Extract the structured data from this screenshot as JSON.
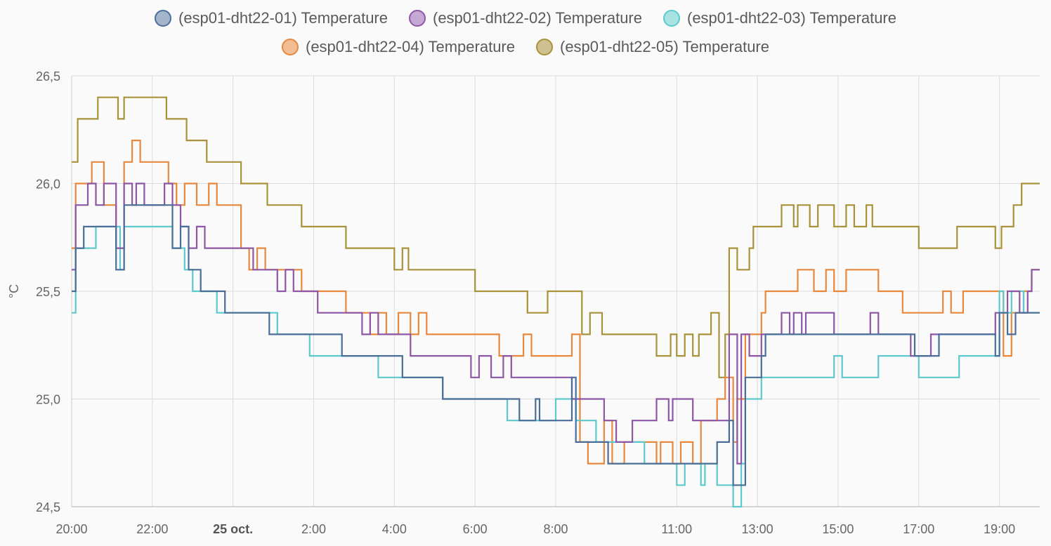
{
  "chart_data": {
    "type": "line",
    "step": true,
    "ylabel": "°C",
    "ylim": [
      24.5,
      26.5
    ],
    "y_ticks": [
      {
        "value": 24.5,
        "label": "24,5"
      },
      {
        "value": 25.0,
        "label": "25,0"
      },
      {
        "value": 25.5,
        "label": "25,5"
      },
      {
        "value": 26.0,
        "label": "26,0"
      },
      {
        "value": 26.5,
        "label": "26,5"
      }
    ],
    "xlim_hours": [
      20,
      44
    ],
    "x_ticks": [
      {
        "hour": 20,
        "label": "20:00",
        "bold": false
      },
      {
        "hour": 22,
        "label": "22:00",
        "bold": false
      },
      {
        "hour": 24,
        "label": "25 oct.",
        "bold": true
      },
      {
        "hour": 26,
        "label": "2:00",
        "bold": false
      },
      {
        "hour": 28,
        "label": "4:00",
        "bold": false
      },
      {
        "hour": 30,
        "label": "6:00",
        "bold": false
      },
      {
        "hour": 32,
        "label": "8:00",
        "bold": false
      },
      {
        "hour": 35,
        "label": "11:00",
        "bold": false
      },
      {
        "hour": 37,
        "label": "13:00",
        "bold": false
      },
      {
        "hour": 39,
        "label": "15:00",
        "bold": false
      },
      {
        "hour": 41,
        "label": "17:00",
        "bold": false
      },
      {
        "hour": 43,
        "label": "19:00",
        "bold": false
      }
    ],
    "legend_rows": [
      [
        0,
        1,
        2
      ],
      [
        3,
        4
      ]
    ],
    "series": [
      {
        "name": "(esp01-dht22-01) Temperature",
        "color": "#4b6e99",
        "fill": "#a4b6cc",
        "points": [
          [
            20,
            25.5
          ],
          [
            20.1,
            25.7
          ],
          [
            20.3,
            25.8
          ],
          [
            21.1,
            25.6
          ],
          [
            21.3,
            25.9
          ],
          [
            22.5,
            25.7
          ],
          [
            22.7,
            25.8
          ],
          [
            22.9,
            25.6
          ],
          [
            23.2,
            25.5
          ],
          [
            23.8,
            25.4
          ],
          [
            24.9,
            25.3
          ],
          [
            25.3,
            25.3
          ],
          [
            26.7,
            25.2
          ],
          [
            27.6,
            25.2
          ],
          [
            28.2,
            25.1
          ],
          [
            29.2,
            25.0
          ],
          [
            31.0,
            25.0
          ],
          [
            31.1,
            24.9
          ],
          [
            31.2,
            24.9
          ],
          [
            31.5,
            25.0
          ],
          [
            31.6,
            24.9
          ],
          [
            32.4,
            25.1
          ],
          [
            32.5,
            24.8
          ],
          [
            33.3,
            24.7
          ],
          [
            34.2,
            24.7
          ],
          [
            35.0,
            24.7
          ],
          [
            35.7,
            24.7
          ],
          [
            36.0,
            24.8
          ],
          [
            36.3,
            24.9
          ],
          [
            36.4,
            24.6
          ],
          [
            36.7,
            25.1
          ],
          [
            37.1,
            25.2
          ],
          [
            37.2,
            25.3
          ],
          [
            39.0,
            25.3
          ],
          [
            39.8,
            25.3
          ],
          [
            40.9,
            25.2
          ],
          [
            41.5,
            25.3
          ],
          [
            42.0,
            25.3
          ],
          [
            42.9,
            25.2
          ],
          [
            43.0,
            25.4
          ],
          [
            43.2,
            25.3
          ],
          [
            43.4,
            25.4
          ],
          [
            43.7,
            25.4
          ]
        ]
      },
      {
        "name": "(esp01-dht22-02) Temperature",
        "color": "#8e56a6",
        "fill": "#c6a8d4",
        "points": [
          [
            20,
            25.6
          ],
          [
            20.1,
            25.9
          ],
          [
            20.4,
            26.0
          ],
          [
            20.6,
            25.9
          ],
          [
            20.8,
            26.0
          ],
          [
            21.1,
            25.7
          ],
          [
            21.3,
            26.0
          ],
          [
            21.5,
            25.9
          ],
          [
            21.6,
            26.0
          ],
          [
            21.8,
            25.9
          ],
          [
            22.3,
            26.0
          ],
          [
            22.5,
            25.9
          ],
          [
            22.7,
            25.8
          ],
          [
            22.9,
            25.7
          ],
          [
            23.1,
            25.8
          ],
          [
            23.3,
            25.7
          ],
          [
            24.5,
            25.6
          ],
          [
            25.1,
            25.5
          ],
          [
            25.3,
            25.6
          ],
          [
            25.5,
            25.5
          ],
          [
            25.8,
            25.5
          ],
          [
            26.1,
            25.4
          ],
          [
            26.5,
            25.4
          ],
          [
            27.2,
            25.3
          ],
          [
            27.4,
            25.4
          ],
          [
            27.6,
            25.3
          ],
          [
            28.2,
            25.3
          ],
          [
            28.4,
            25.2
          ],
          [
            29.6,
            25.2
          ],
          [
            29.9,
            25.1
          ],
          [
            30.1,
            25.2
          ],
          [
            30.4,
            25.1
          ],
          [
            30.7,
            25.2
          ],
          [
            30.9,
            25.1
          ],
          [
            32.4,
            25.0
          ],
          [
            33.2,
            24.9
          ],
          [
            33.5,
            24.8
          ],
          [
            33.9,
            24.9
          ],
          [
            34.5,
            25.0
          ],
          [
            34.8,
            24.9
          ],
          [
            34.9,
            25.0
          ],
          [
            35.4,
            24.9
          ],
          [
            36.0,
            24.9
          ],
          [
            36.3,
            25.3
          ],
          [
            36.5,
            24.7
          ],
          [
            36.6,
            25.3
          ],
          [
            36.8,
            25.2
          ],
          [
            37.1,
            25.3
          ],
          [
            37.2,
            25.3
          ],
          [
            37.6,
            25.4
          ],
          [
            37.8,
            25.3
          ],
          [
            37.9,
            25.4
          ],
          [
            38.1,
            25.3
          ],
          [
            38.2,
            25.4
          ],
          [
            38.9,
            25.3
          ],
          [
            39.1,
            25.3
          ],
          [
            39.8,
            25.4
          ],
          [
            40.0,
            25.3
          ],
          [
            40.8,
            25.2
          ],
          [
            41.3,
            25.3
          ],
          [
            42.9,
            25.4
          ],
          [
            43.2,
            25.5
          ],
          [
            43.5,
            25.4
          ],
          [
            43.7,
            25.5
          ],
          [
            43.8,
            25.6
          ]
        ]
      },
      {
        "name": "(esp01-dht22-03) Temperature",
        "color": "#5ec9cc",
        "fill": "#a8e3e3",
        "points": [
          [
            20,
            25.4
          ],
          [
            20.1,
            25.7
          ],
          [
            20.6,
            25.8
          ],
          [
            21.2,
            25.6
          ],
          [
            21.3,
            25.8
          ],
          [
            22.5,
            25.7
          ],
          [
            22.8,
            25.6
          ],
          [
            23.0,
            25.5
          ],
          [
            23.6,
            25.4
          ],
          [
            24.3,
            25.4
          ],
          [
            25.1,
            25.3
          ],
          [
            25.9,
            25.2
          ],
          [
            26.8,
            25.2
          ],
          [
            27.6,
            25.1
          ],
          [
            28.2,
            25.1
          ],
          [
            29.2,
            25.0
          ],
          [
            30.0,
            25.0
          ],
          [
            30.8,
            24.9
          ],
          [
            31.5,
            24.9
          ],
          [
            32.0,
            25.0
          ],
          [
            32.5,
            24.9
          ],
          [
            33.0,
            24.8
          ],
          [
            34.2,
            24.7
          ],
          [
            35.0,
            24.6
          ],
          [
            35.2,
            24.7
          ],
          [
            35.6,
            24.6
          ],
          [
            35.7,
            24.7
          ],
          [
            36.0,
            24.6
          ],
          [
            36.4,
            24.5
          ],
          [
            36.6,
            24.7
          ],
          [
            36.7,
            25.0
          ],
          [
            37.1,
            25.1
          ],
          [
            38.9,
            25.2
          ],
          [
            39.1,
            25.1
          ],
          [
            40.0,
            25.2
          ],
          [
            41.0,
            25.1
          ],
          [
            42.0,
            25.2
          ],
          [
            42.9,
            25.2
          ],
          [
            43.0,
            25.5
          ],
          [
            43.1,
            25.4
          ],
          [
            43.3,
            25.5
          ],
          [
            43.6,
            25.4
          ],
          [
            44.0,
            25.4
          ]
        ]
      },
      {
        "name": "(esp01-dht22-04) Temperature",
        "color": "#e8883d",
        "fill": "#f3bd93",
        "points": [
          [
            20,
            25.7
          ],
          [
            20.1,
            26.0
          ],
          [
            20.5,
            26.1
          ],
          [
            20.8,
            25.9
          ],
          [
            21.1,
            25.7
          ],
          [
            21.3,
            26.1
          ],
          [
            21.5,
            26.2
          ],
          [
            21.7,
            26.1
          ],
          [
            22.4,
            26.0
          ],
          [
            22.6,
            25.9
          ],
          [
            22.8,
            26.0
          ],
          [
            23.1,
            25.9
          ],
          [
            23.4,
            26.0
          ],
          [
            23.6,
            25.9
          ],
          [
            24.2,
            25.7
          ],
          [
            24.4,
            25.6
          ],
          [
            24.6,
            25.7
          ],
          [
            24.8,
            25.6
          ],
          [
            25.2,
            25.6
          ],
          [
            25.7,
            25.5
          ],
          [
            26.3,
            25.5
          ],
          [
            26.8,
            25.4
          ],
          [
            27.4,
            25.3
          ],
          [
            27.6,
            25.4
          ],
          [
            27.8,
            25.3
          ],
          [
            28.1,
            25.4
          ],
          [
            28.4,
            25.3
          ],
          [
            28.6,
            25.4
          ],
          [
            28.8,
            25.3
          ],
          [
            30.0,
            25.3
          ],
          [
            30.6,
            25.2
          ],
          [
            31.2,
            25.3
          ],
          [
            31.4,
            25.2
          ],
          [
            32.2,
            25.2
          ],
          [
            32.4,
            25.3
          ],
          [
            32.6,
            24.8
          ],
          [
            32.8,
            24.7
          ],
          [
            33.2,
            24.9
          ],
          [
            33.4,
            24.7
          ],
          [
            33.7,
            24.8
          ],
          [
            34.2,
            24.8
          ],
          [
            34.5,
            24.7
          ],
          [
            34.6,
            24.8
          ],
          [
            34.9,
            24.7
          ],
          [
            35.1,
            24.8
          ],
          [
            35.4,
            24.7
          ],
          [
            35.6,
            24.9
          ],
          [
            36.0,
            25.0
          ],
          [
            36.2,
            25.1
          ],
          [
            36.4,
            24.8
          ],
          [
            36.5,
            25.0
          ],
          [
            36.7,
            25.3
          ],
          [
            37.1,
            25.4
          ],
          [
            37.2,
            25.5
          ],
          [
            38.0,
            25.6
          ],
          [
            38.4,
            25.5
          ],
          [
            38.7,
            25.6
          ],
          [
            38.9,
            25.5
          ],
          [
            39.2,
            25.6
          ],
          [
            40.0,
            25.5
          ],
          [
            40.6,
            25.4
          ],
          [
            41.4,
            25.4
          ],
          [
            41.6,
            25.5
          ],
          [
            41.8,
            25.4
          ],
          [
            42.1,
            25.5
          ],
          [
            42.3,
            25.5
          ],
          [
            43.1,
            25.2
          ],
          [
            43.3,
            25.4
          ],
          [
            43.6,
            25.5
          ],
          [
            43.8,
            25.6
          ]
        ]
      },
      {
        "name": "(esp01-dht22-05) Temperature",
        "color": "#a8923a",
        "fill": "#cfc18f",
        "points": [
          [
            20,
            26.1
          ],
          [
            20.15,
            26.3
          ],
          [
            20.65,
            26.4
          ],
          [
            21.15,
            26.3
          ],
          [
            21.3,
            26.4
          ],
          [
            22.35,
            26.3
          ],
          [
            22.85,
            26.2
          ],
          [
            23.35,
            26.1
          ],
          [
            24.2,
            26.0
          ],
          [
            24.85,
            25.9
          ],
          [
            25.7,
            25.8
          ],
          [
            26.8,
            25.7
          ],
          [
            28.0,
            25.6
          ],
          [
            28.2,
            25.7
          ],
          [
            28.35,
            25.6
          ],
          [
            30.0,
            25.5
          ],
          [
            31.3,
            25.4
          ],
          [
            31.8,
            25.5
          ],
          [
            32.65,
            25.3
          ],
          [
            32.85,
            25.4
          ],
          [
            33.15,
            25.3
          ],
          [
            34.5,
            25.2
          ],
          [
            34.85,
            25.3
          ],
          [
            35.0,
            25.2
          ],
          [
            35.2,
            25.3
          ],
          [
            35.4,
            25.2
          ],
          [
            35.55,
            25.3
          ],
          [
            35.85,
            25.4
          ],
          [
            36.05,
            25.1
          ],
          [
            36.2,
            25.3
          ],
          [
            36.3,
            25.7
          ],
          [
            36.5,
            25.6
          ],
          [
            36.8,
            25.7
          ],
          [
            36.9,
            25.8
          ],
          [
            37.6,
            25.9
          ],
          [
            37.9,
            25.8
          ],
          [
            38.0,
            25.9
          ],
          [
            38.3,
            25.8
          ],
          [
            38.5,
            25.9
          ],
          [
            38.9,
            25.8
          ],
          [
            39.2,
            25.9
          ],
          [
            39.4,
            25.8
          ],
          [
            39.7,
            25.9
          ],
          [
            39.85,
            25.8
          ],
          [
            41.0,
            25.7
          ],
          [
            41.95,
            25.8
          ],
          [
            42.9,
            25.7
          ],
          [
            43.05,
            25.8
          ],
          [
            43.35,
            25.9
          ],
          [
            43.55,
            26.0
          ],
          [
            43.75,
            26.0
          ]
        ]
      }
    ]
  }
}
